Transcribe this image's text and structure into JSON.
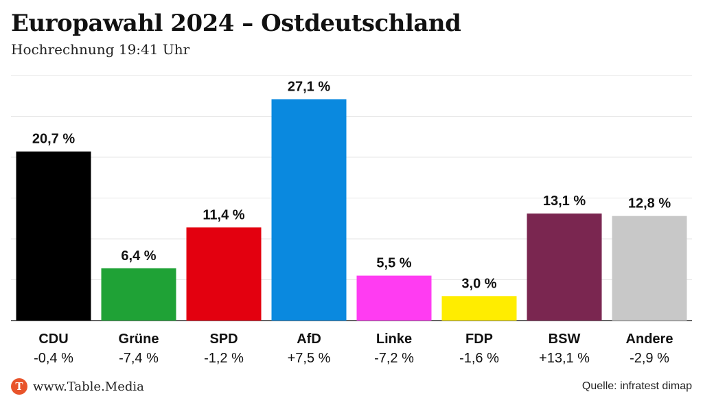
{
  "title": "Europawahl 2024 – Ostdeutschland",
  "subtitle": "Hochrechnung 19:41 Uhr",
  "brand": {
    "logo_letter": "T",
    "text": "www.Table.Media"
  },
  "source": "Quelle: infratest dimap",
  "chart_data": {
    "type": "bar",
    "title": "Europawahl 2024 – Ostdeutschland",
    "subtitle": "Hochrechnung 19:41 Uhr",
    "xlabel": "",
    "ylabel": "",
    "ylim": [
      0,
      30
    ],
    "grid": true,
    "categories": [
      "CDU",
      "Grüne",
      "SPD",
      "AfD",
      "Linke",
      "FDP",
      "BSW",
      "Andere"
    ],
    "values": [
      20.7,
      6.4,
      11.4,
      27.1,
      5.5,
      3.0,
      13.1,
      12.8
    ],
    "value_labels": [
      "20,7 %",
      "6,4 %",
      "11,4 %",
      "27,1 %",
      "5,5 %",
      "3,0 %",
      "13,1 %",
      "12,8 %"
    ],
    "changes": [
      "-0,4 %",
      "-7,4 %",
      "-1,2 %",
      "+7,5 %",
      "-7,2 %",
      "-1,6 %",
      "+13,1 %",
      "-2,9 %"
    ],
    "colors": [
      "#000000",
      "#1fa236",
      "#e3000f",
      "#0a89df",
      "#ff3cf2",
      "#ffed00",
      "#7a2650",
      "#c8c8c8"
    ]
  }
}
